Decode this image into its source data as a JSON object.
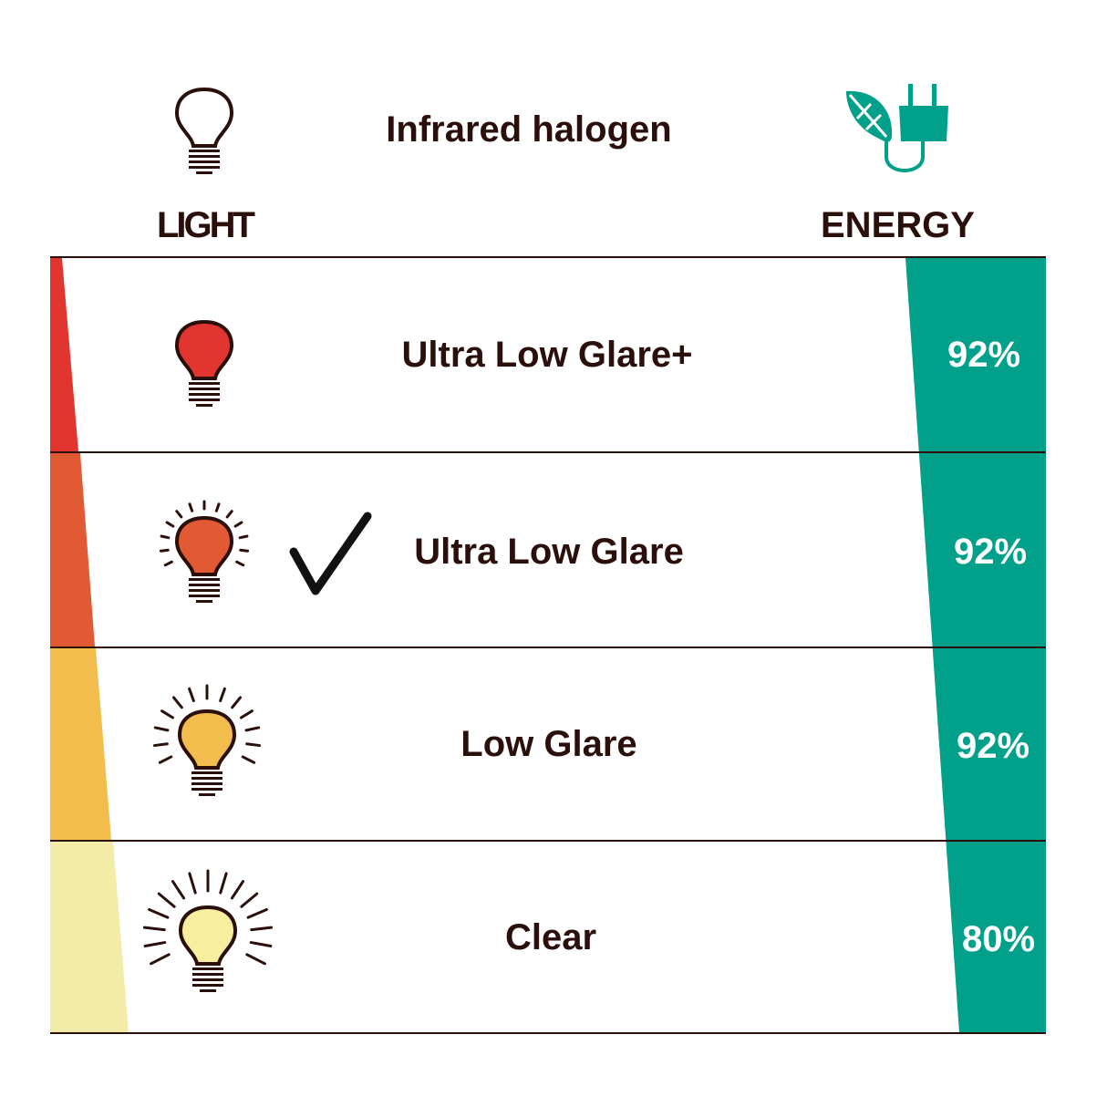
{
  "title": "Infrared halogen",
  "left_header": "LIGHT",
  "right_header": "ENERGY",
  "colors": {
    "text": "#2a0f0a",
    "energy": "#00a08a",
    "red": "#e23530",
    "orange": "#e25a34",
    "yellow": "#f2bd4c",
    "pale": "#f3eca8"
  },
  "rows": [
    {
      "label": "Ultra Low Glare+",
      "energy": "92%",
      "bulb_color": "#e23530",
      "rays": "none",
      "selected": false
    },
    {
      "label": "Ultra Low Glare",
      "energy": "92%",
      "bulb_color": "#e25a34",
      "rays": "short",
      "selected": true
    },
    {
      "label": "Low Glare",
      "energy": "92%",
      "bulb_color": "#f2bd4c",
      "rays": "medium",
      "selected": false
    },
    {
      "label": "Clear",
      "energy": "80%",
      "bulb_color": "#f8ef9e",
      "rays": "long",
      "selected": false
    }
  ],
  "icons": {
    "header_left": "lightbulb-outline-icon",
    "header_right": "leaf-plug-icon",
    "selected": "checkmark-icon"
  }
}
